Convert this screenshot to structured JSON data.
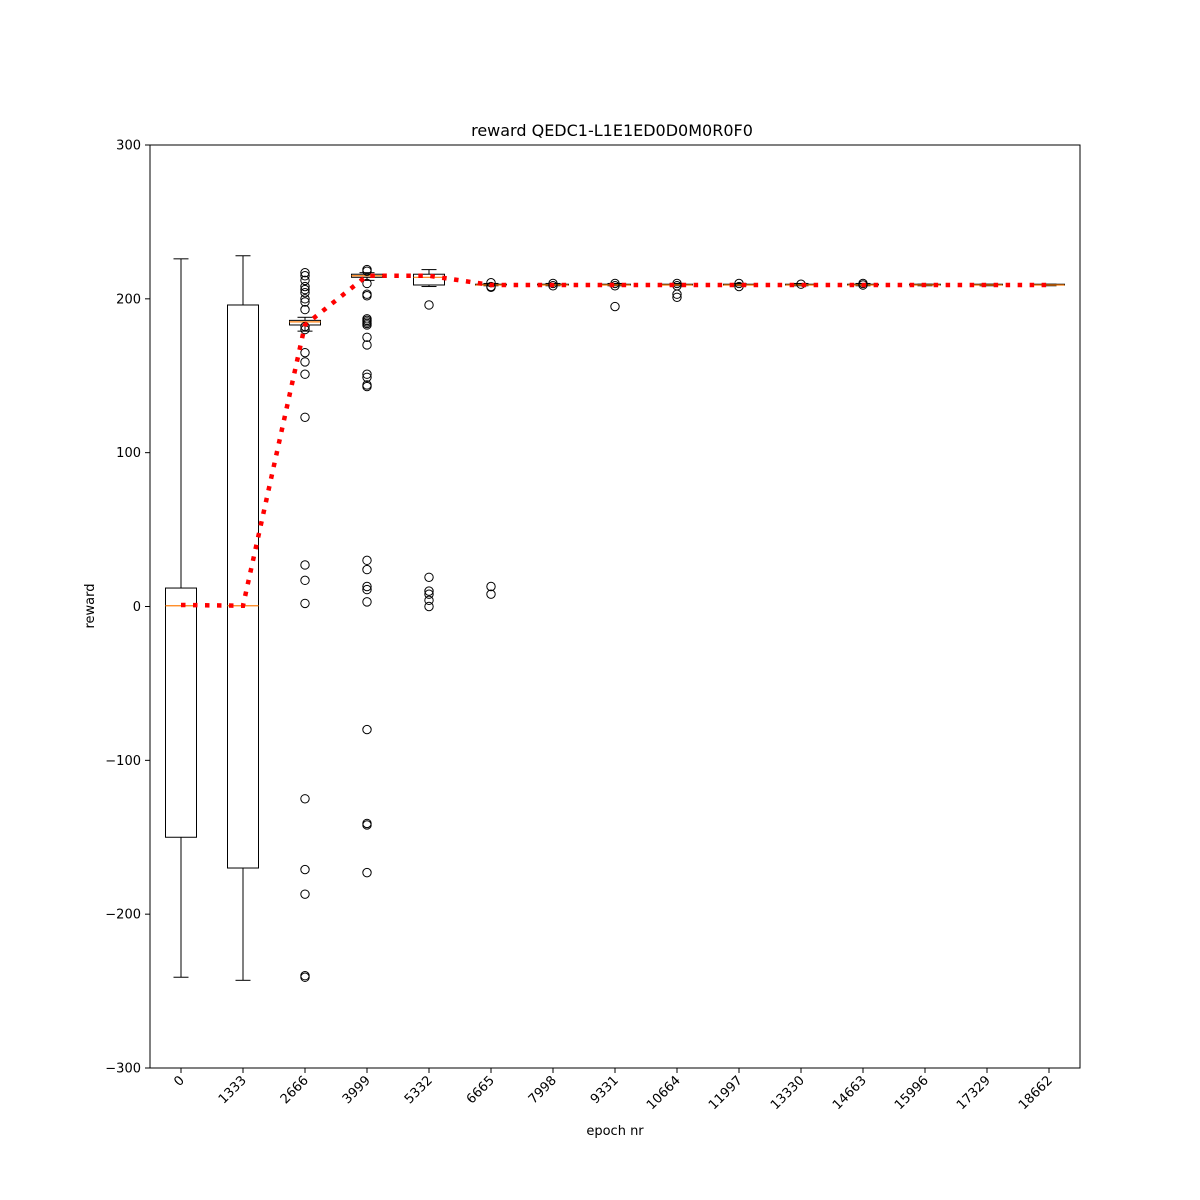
{
  "chart_data": {
    "type": "box",
    "title": "reward QEDC1-L1E1ED0D0M0R0F0",
    "xlabel": "epoch nr",
    "ylabel": "reward",
    "ylim": [
      -300,
      300
    ],
    "yticks": [
      -300,
      -200,
      -100,
      0,
      100,
      200,
      300
    ],
    "ytick_labels": [
      "−300",
      "−200",
      "−100",
      "0",
      "100",
      "200",
      "300"
    ],
    "grid": false,
    "categories": [
      "0",
      "1333",
      "2666",
      "3999",
      "5332",
      "6665",
      "7998",
      "9331",
      "10664",
      "11997",
      "13330",
      "14663",
      "15996",
      "17329",
      "18662"
    ],
    "boxes": [
      {
        "whisker_low": -241,
        "q1": -150,
        "median": 0.5,
        "q3": 12,
        "whisker_high": 226,
        "outliers": []
      },
      {
        "whisker_low": -243,
        "q1": -170,
        "median": 0.5,
        "q3": 196,
        "whisker_high": 228,
        "outliers": []
      },
      {
        "whisker_low": 179,
        "q1": 183,
        "median": 185,
        "q3": 186,
        "whisker_high": 188,
        "outliers": [
          217,
          215,
          212,
          208,
          206,
          204,
          200,
          198,
          193,
          182,
          180,
          165,
          159,
          151,
          123,
          27,
          17,
          2,
          -125,
          -171,
          -187,
          -240,
          -241
        ]
      },
      {
        "whisker_low": 212,
        "q1": 214,
        "median": 215,
        "q3": 216,
        "whisker_high": 217,
        "outliers": [
          219,
          218,
          210,
          203,
          202,
          187,
          186,
          185,
          184,
          183,
          175,
          170,
          151,
          149,
          144,
          143,
          30,
          24,
          13,
          11,
          3,
          -80,
          -141,
          -142,
          -173
        ]
      },
      {
        "whisker_low": 208,
        "q1": 209,
        "median": 214,
        "q3": 216,
        "whisker_high": 219,
        "outliers": [
          196,
          19,
          10,
          8,
          4,
          0
        ]
      },
      {
        "whisker_low": 208.5,
        "q1": 209,
        "median": 209,
        "q3": 209.5,
        "whisker_high": 210,
        "outliers": [
          210.5,
          208,
          207.5,
          13,
          8
        ]
      },
      {
        "whisker_low": 208.5,
        "q1": 209,
        "median": 209,
        "q3": 209.5,
        "whisker_high": 210,
        "outliers": [
          210,
          208.5
        ]
      },
      {
        "whisker_low": 208.5,
        "q1": 209,
        "median": 209,
        "q3": 209.5,
        "whisker_high": 210,
        "outliers": [
          210,
          208.5,
          195
        ]
      },
      {
        "whisker_low": 208.5,
        "q1": 209,
        "median": 209,
        "q3": 209.5,
        "whisker_high": 210,
        "outliers": [
          210,
          208.5,
          203,
          201
        ]
      },
      {
        "whisker_low": 208.5,
        "q1": 209,
        "median": 209,
        "q3": 209.5,
        "whisker_high": 210,
        "outliers": [
          210,
          208
        ]
      },
      {
        "whisker_low": 208.5,
        "q1": 209,
        "median": 209,
        "q3": 209.5,
        "whisker_high": 210,
        "outliers": [
          209.5
        ]
      },
      {
        "whisker_low": 208.5,
        "q1": 209,
        "median": 209,
        "q3": 209.5,
        "whisker_high": 210,
        "outliers": [
          210,
          209
        ]
      },
      {
        "whisker_low": 208.5,
        "q1": 209,
        "median": 209,
        "q3": 209.5,
        "whisker_high": 209.5,
        "outliers": []
      },
      {
        "whisker_low": 208.5,
        "q1": 209,
        "median": 209,
        "q3": 209.5,
        "whisker_high": 209.5,
        "outliers": []
      },
      {
        "whisker_low": 208.5,
        "q1": 209,
        "median": 209,
        "q3": 209.5,
        "whisker_high": 209.5,
        "outliers": []
      }
    ],
    "mean_line": {
      "values": [
        1,
        0.5,
        183,
        215,
        215,
        209,
        209,
        209,
        209,
        209,
        209,
        209,
        209,
        209,
        209
      ],
      "color": "#ff0000",
      "style": "dotted"
    },
    "colors": {
      "box": "#000000",
      "median": "#ff7f0e",
      "mean_line": "#ff0000",
      "outlier": "#000000"
    }
  }
}
